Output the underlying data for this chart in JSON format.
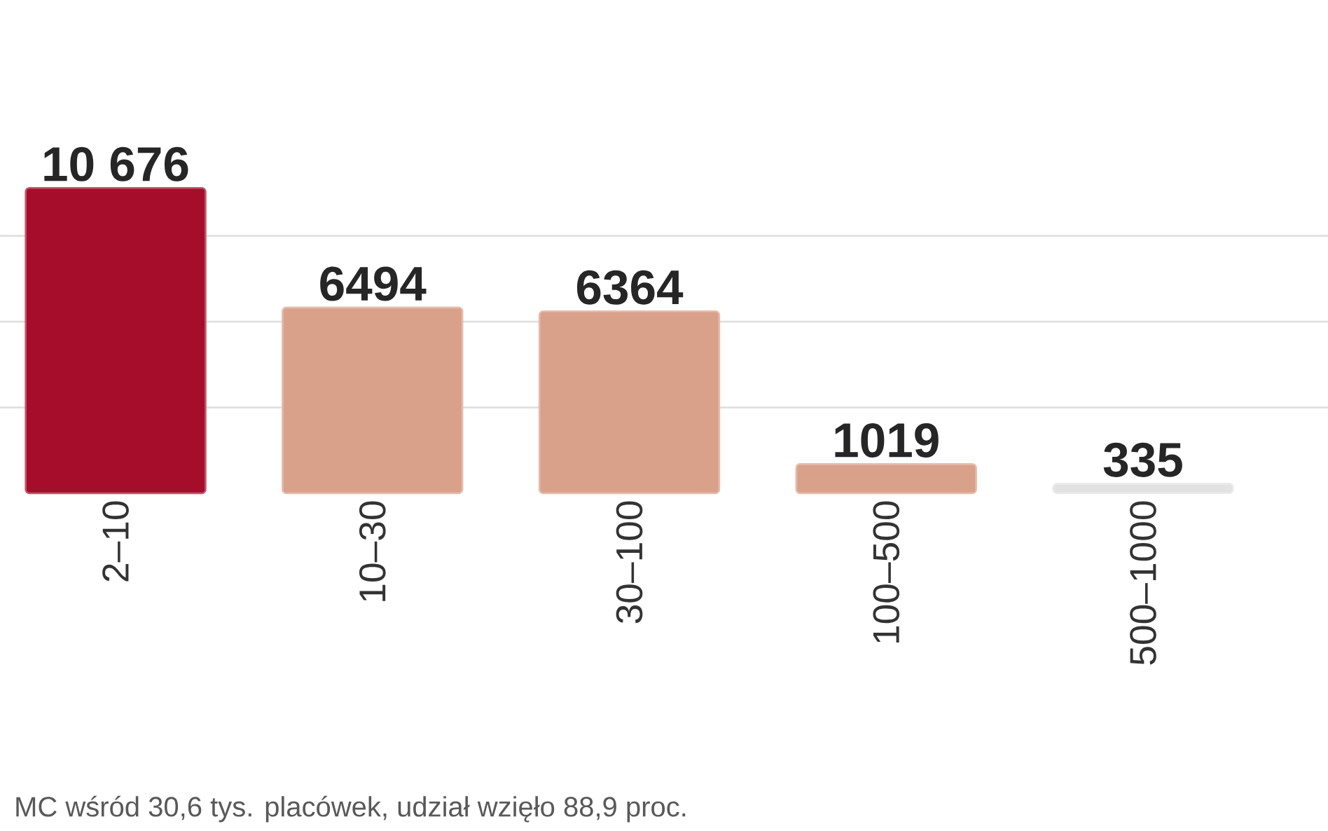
{
  "chart_data": {
    "type": "bar",
    "categories": [
      "2–10",
      "10–30",
      "30–100",
      "100–500",
      "500–1000"
    ],
    "values": [
      10676,
      6494,
      6364,
      1019,
      335
    ],
    "value_labels": [
      "10 676",
      "6494",
      "6364",
      "1019",
      "335"
    ],
    "colors": [
      "#a50d2a",
      "#d9a08a",
      "#d9a08a",
      "#d9a08a",
      "#e2e2e2"
    ],
    "yticks": [
      {
        "value": 3000,
        "label": null
      },
      {
        "value": 6000,
        "label": null
      },
      {
        "value": 9000,
        "label": null
      }
    ],
    "grid": "y",
    "tick_labels": "x",
    "annotations": [
      "MC wśród 30,6 tys. placówek, udział wzięło 88,9 proc."
    ]
  }
}
